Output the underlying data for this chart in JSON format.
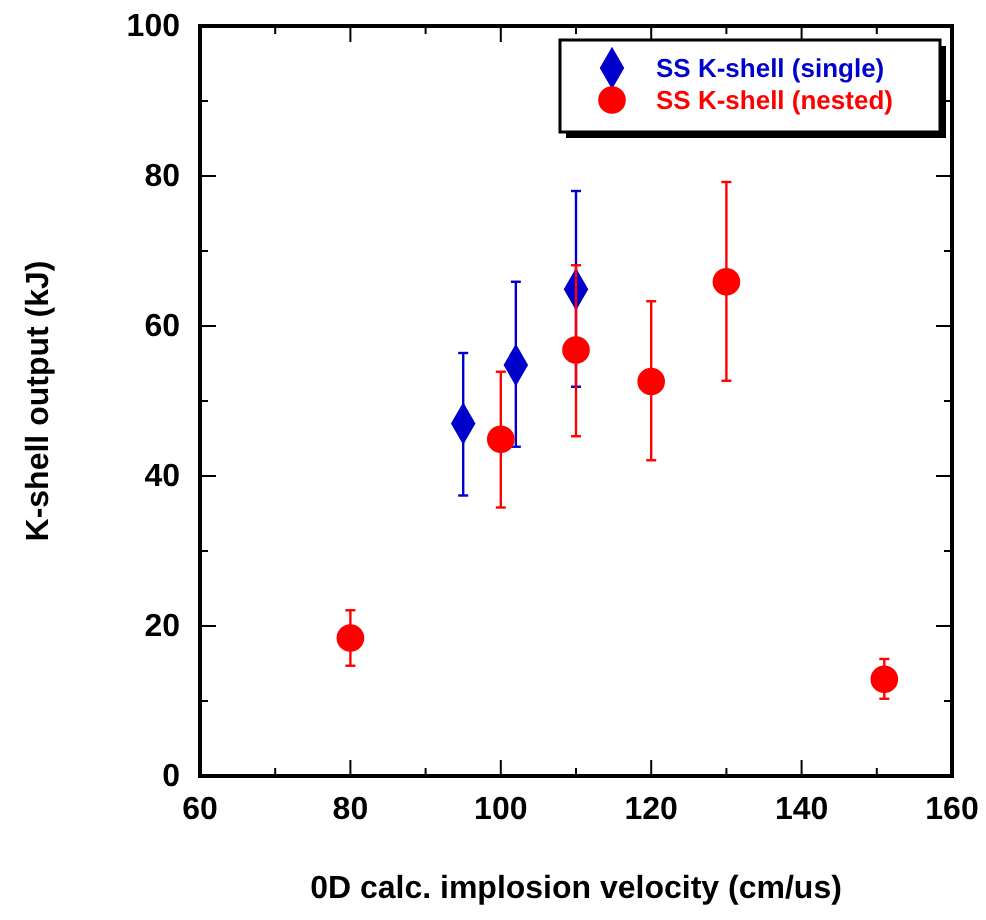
{
  "chart_data": {
    "type": "scatter",
    "xlabel": "0D calc. implosion velocity (cm/us)",
    "ylabel": "K-shell output (kJ)",
    "xlim": [
      60,
      160
    ],
    "ylim": [
      0,
      100
    ],
    "xticks": [
      60,
      {
        "value": 70,
        "label": null
      },
      80,
      {
        "value": 90,
        "label": null
      },
      100,
      {
        "value": 110,
        "label": null
      },
      120,
      {
        "value": 130,
        "label": null
      },
      140,
      {
        "value": 150,
        "label": null
      },
      160
    ],
    "yticks": [
      0,
      {
        "value": 10,
        "label": null
      },
      20,
      {
        "value": 30,
        "label": null
      },
      40,
      {
        "value": 50,
        "label": null
      },
      60,
      {
        "value": 70,
        "label": null
      },
      80,
      {
        "value": 90,
        "label": null
      },
      100
    ],
    "grid": false,
    "legend": "top right",
    "series": [
      {
        "name": "SS K-shell (single)",
        "color": "#0000cc",
        "marker": "diamond",
        "x": [
          95,
          102,
          110
        ],
        "values": [
          47,
          54.8,
          64.9
        ],
        "errors": [
          [
            37.4,
            56.4
          ],
          [
            43.9,
            65.9
          ],
          [
            51.9,
            78
          ]
        ]
      },
      {
        "name": "SS K-shell (nested)",
        "color": "#ff0000",
        "marker": "circle",
        "x": [
          80,
          100,
          110,
          120,
          130,
          151
        ],
        "values": [
          18.4,
          44.9,
          56.8,
          52.6,
          65.9,
          12.9
        ],
        "errors": [
          [
            14.7,
            22.1
          ],
          [
            35.8,
            53.9
          ],
          [
            45.3,
            68.1
          ],
          [
            42.1,
            63.3
          ],
          [
            52.7,
            79.2
          ],
          [
            10.3,
            15.6
          ]
        ]
      }
    ]
  }
}
